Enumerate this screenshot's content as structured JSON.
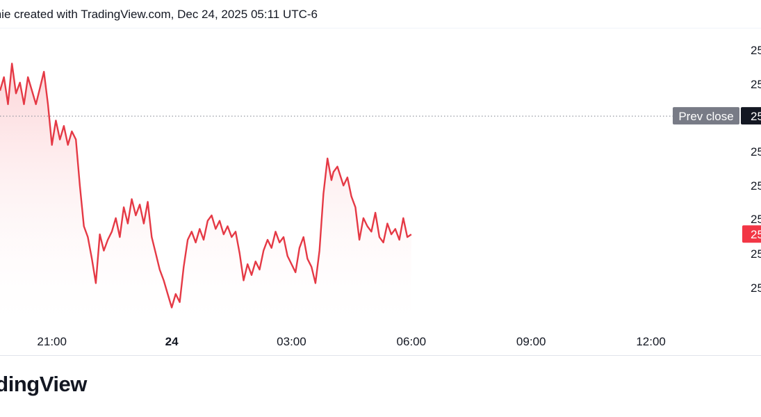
{
  "header": {
    "caption": "mie created with TradingView.com, Dec 24, 2025 05:11 UTC-6"
  },
  "footer": {
    "brand": "radingView"
  },
  "colors": {
    "line": "#e53945",
    "area_top": "#fcd4d7",
    "prev_close_badge": "#787b86",
    "current_badge": "#f23645"
  },
  "chart_data": {
    "type": "area",
    "title": "",
    "xlabel": "",
    "ylabel": "",
    "x_ticks": [
      {
        "label": "21:00",
        "bold": false
      },
      {
        "label": "24",
        "bold": true
      },
      {
        "label": "03:00",
        "bold": false
      },
      {
        "label": "06:00",
        "bold": false
      },
      {
        "label": "09:00",
        "bold": false
      },
      {
        "label": "12:00",
        "bold": false
      }
    ],
    "x_range_hours": [
      -4.3,
      14.2
    ],
    "y_range": [
      0,
      1
    ],
    "y_tick_labels": [
      "25",
      "25",
      "25",
      "25",
      "25",
      "25",
      "25",
      "25"
    ],
    "prev_close": {
      "label": "Prev close",
      "value_label": "25",
      "level": 0.756
    },
    "current_price": {
      "value_label": "25"
    },
    "series": [
      {
        "x": [
          -4.3,
          -4.2,
          -4.1,
          -4.0,
          -3.9,
          -3.8,
          -3.7,
          -3.6,
          -3.5,
          -3.4,
          -3.3,
          -3.2,
          -3.1,
          -3.0,
          -2.9,
          -2.8,
          -2.7,
          -2.6,
          -2.5,
          -2.4,
          -2.3,
          -2.2,
          -2.1,
          -2.0,
          -1.9,
          -1.8,
          -1.7,
          -1.6,
          -1.5,
          -1.4,
          -1.3,
          -1.2,
          -1.1,
          -1.0,
          -0.9,
          -0.8,
          -0.7,
          -0.6,
          -0.5,
          -0.4,
          -0.3,
          -0.2,
          -0.1,
          0.0,
          0.1,
          0.2,
          0.3,
          0.4,
          0.5,
          0.6,
          0.7,
          0.8,
          0.9,
          1.0,
          1.1,
          1.2,
          1.3,
          1.4,
          1.5,
          1.6,
          1.7,
          1.8,
          1.9,
          2.0,
          2.1,
          2.2,
          2.3,
          2.4,
          2.5,
          2.6,
          2.7,
          2.8,
          2.9,
          3.0,
          3.1,
          3.2,
          3.3,
          3.4,
          3.5,
          3.6,
          3.7,
          3.8,
          3.9,
          4.0,
          4.05,
          4.15,
          4.3,
          4.4,
          4.5,
          4.6,
          4.7,
          4.8,
          4.9,
          5.0,
          5.1,
          5.2,
          5.3,
          5.4,
          5.5,
          5.6,
          5.7,
          5.8,
          5.9,
          6.0
        ],
        "values": [
          0.85,
          0.9,
          0.8,
          0.95,
          0.84,
          0.88,
          0.8,
          0.9,
          0.85,
          0.8,
          0.86,
          0.92,
          0.8,
          0.65,
          0.74,
          0.67,
          0.72,
          0.65,
          0.7,
          0.67,
          0.5,
          0.35,
          0.31,
          0.23,
          0.14,
          0.32,
          0.26,
          0.3,
          0.33,
          0.38,
          0.31,
          0.42,
          0.36,
          0.45,
          0.39,
          0.43,
          0.36,
          0.44,
          0.31,
          0.25,
          0.19,
          0.15,
          0.1,
          0.05,
          0.1,
          0.07,
          0.2,
          0.3,
          0.33,
          0.29,
          0.34,
          0.3,
          0.37,
          0.39,
          0.34,
          0.37,
          0.32,
          0.35,
          0.31,
          0.33,
          0.25,
          0.15,
          0.21,
          0.17,
          0.22,
          0.19,
          0.26,
          0.3,
          0.27,
          0.33,
          0.29,
          0.31,
          0.24,
          0.21,
          0.18,
          0.27,
          0.31,
          0.23,
          0.2,
          0.14,
          0.26,
          0.47,
          0.6,
          0.52,
          0.55,
          0.57,
          0.5,
          0.53,
          0.46,
          0.42,
          0.3,
          0.38,
          0.35,
          0.33,
          0.4,
          0.31,
          0.29,
          0.36,
          0.32,
          0.34,
          0.3,
          0.38,
          0.31,
          0.32
        ]
      }
    ]
  }
}
